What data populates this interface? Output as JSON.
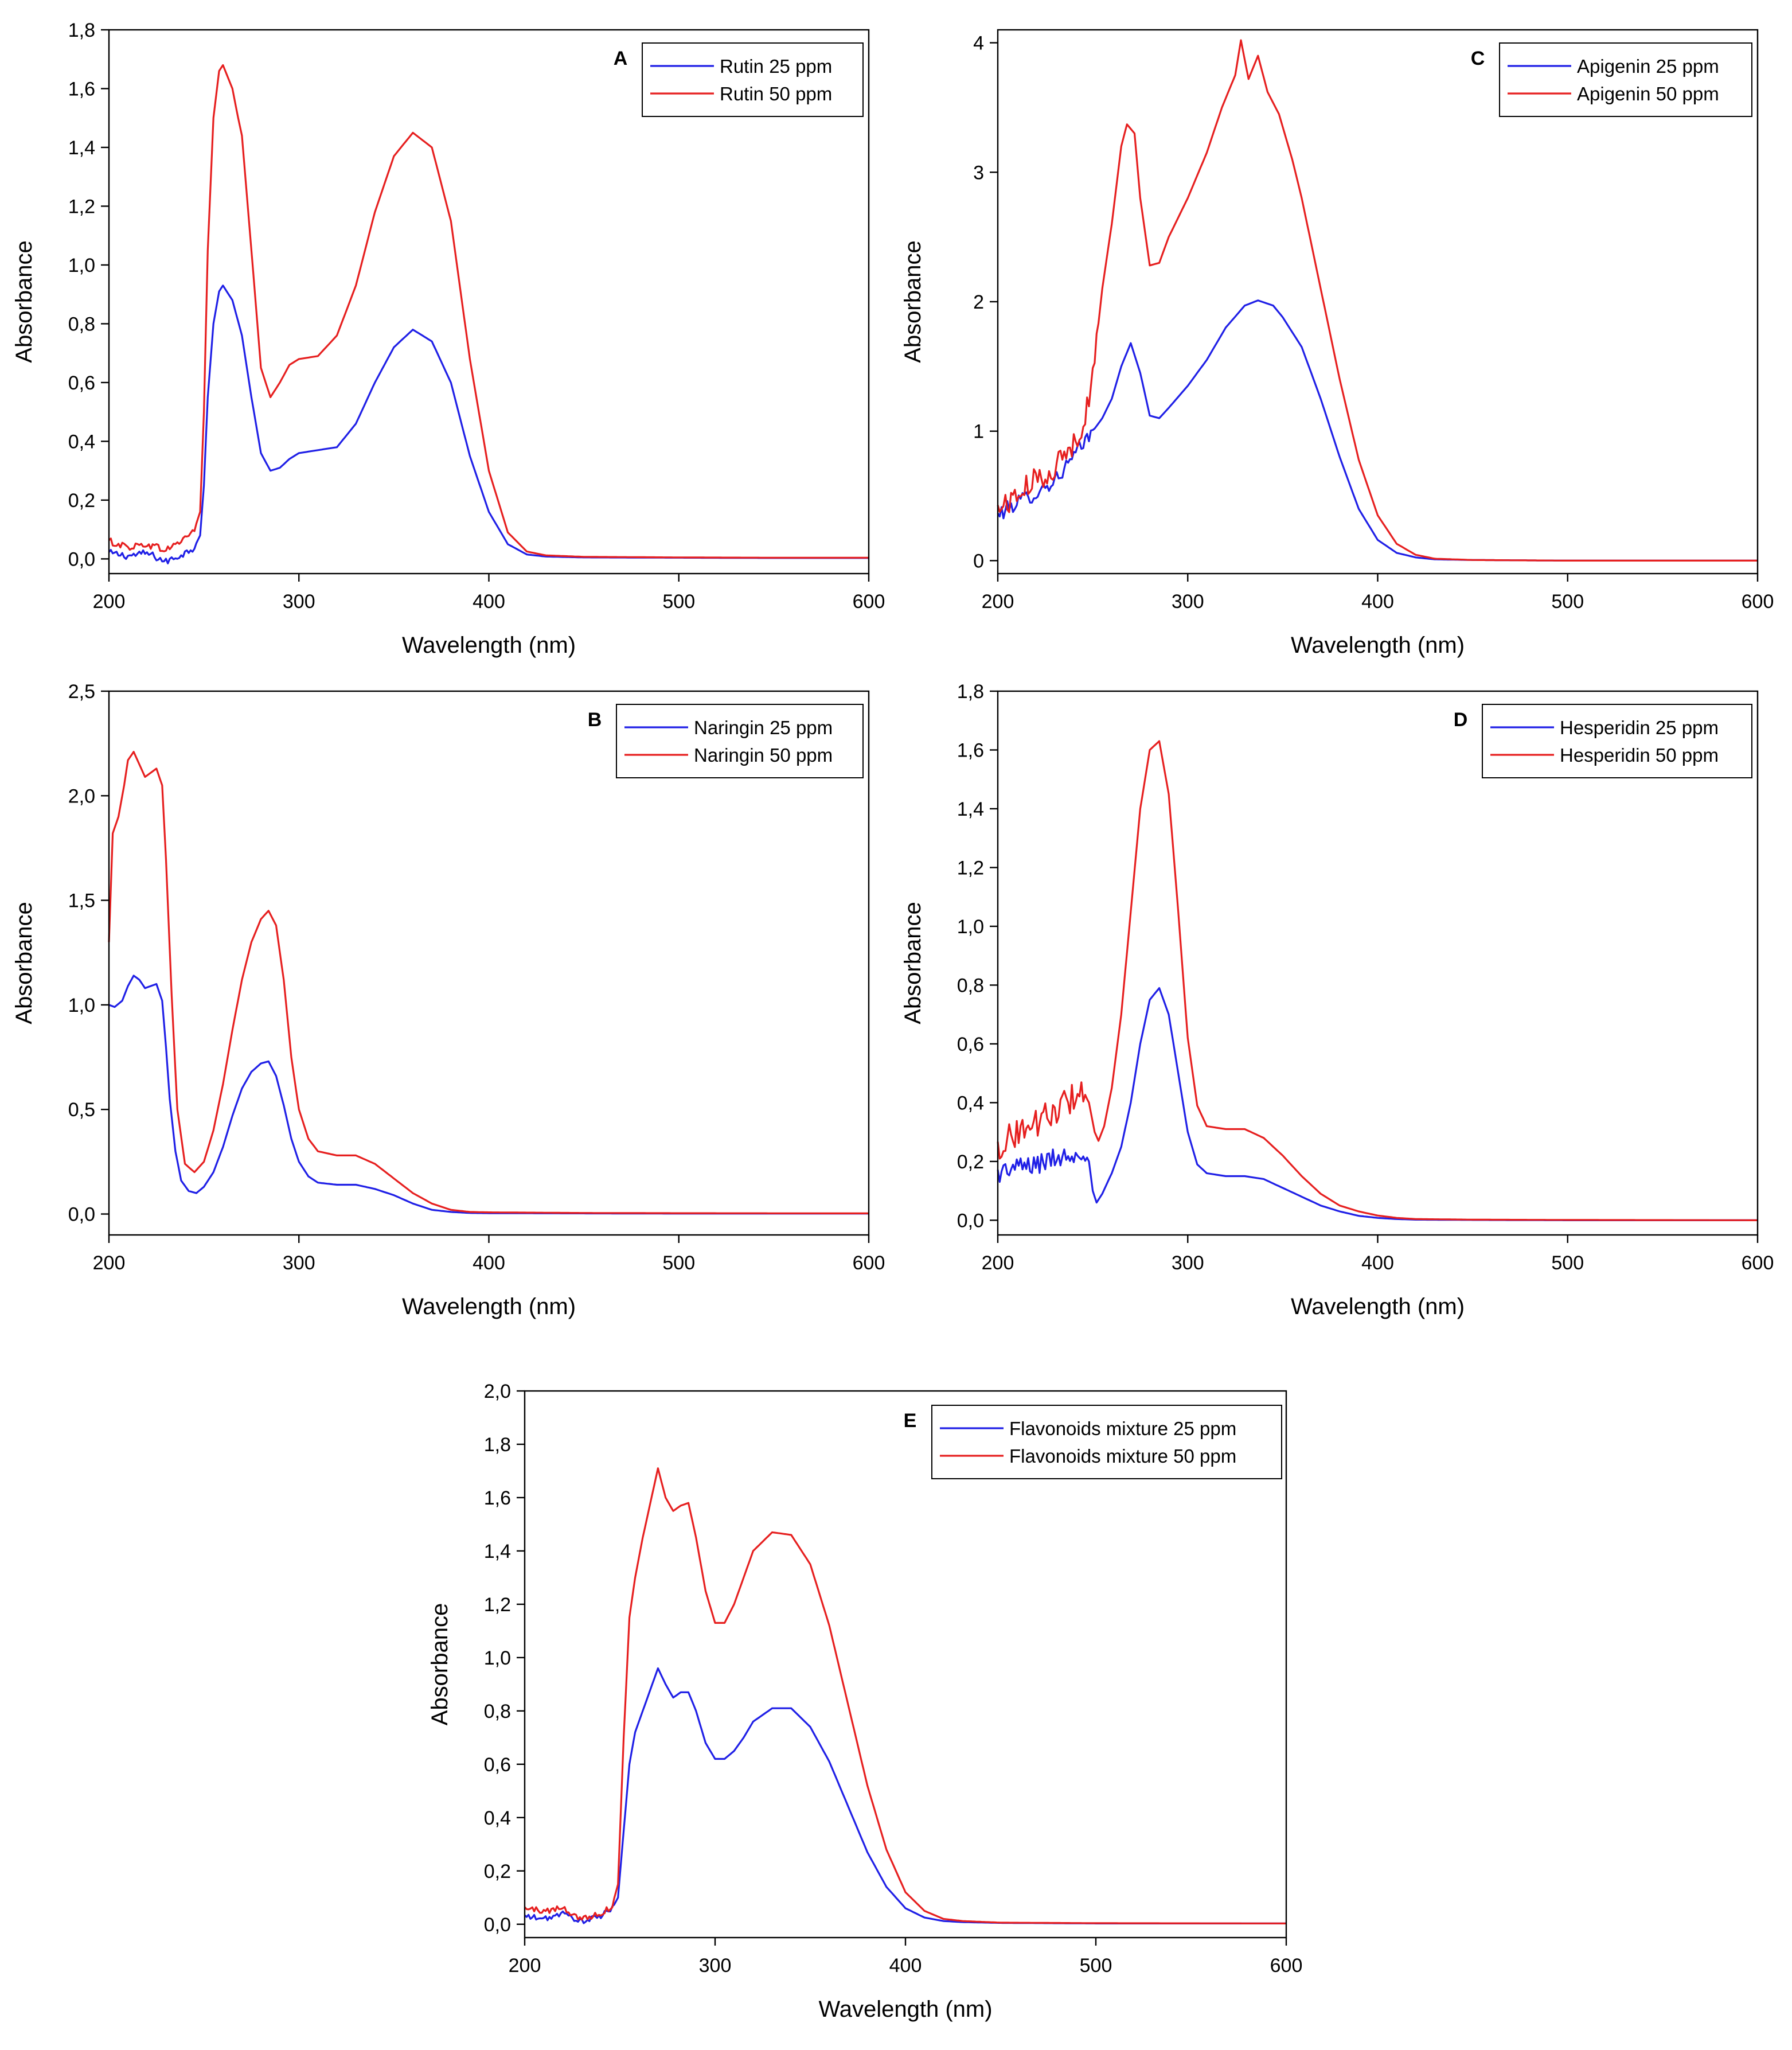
{
  "figure": {
    "background": "#ffffff"
  },
  "colors": {
    "series_25": "#1f1fe6",
    "series_50": "#e61f1f"
  },
  "chart_data": [
    {
      "panel": "A",
      "type": "line",
      "xlabel": "Wavelength (nm)",
      "ylabel": "Absorbance",
      "xlim": [
        200,
        600
      ],
      "ylim": [
        -0.05,
        1.8
      ],
      "xticks": [
        200,
        300,
        400,
        500,
        600
      ],
      "xtick_labels": [
        "200",
        "300",
        "400",
        "500",
        "600"
      ],
      "yticks": [
        0,
        0.2,
        0.4,
        0.6,
        0.8,
        1.0,
        1.2,
        1.4,
        1.6,
        1.8
      ],
      "ytick_labels": [
        "0,0",
        "0,2",
        "0,4",
        "0,6",
        "0,8",
        "1,0",
        "1,2",
        "1,4",
        "1,6",
        "1,8"
      ],
      "series": [
        {
          "name": "Rutin 25 ppm",
          "color": "#1f1fe6",
          "noise": 0.012,
          "noise_end": 245,
          "x": [
            200,
            210,
            220,
            230,
            240,
            245,
            248,
            250,
            252,
            255,
            258,
            260,
            265,
            270,
            275,
            280,
            285,
            290,
            295,
            300,
            310,
            320,
            330,
            340,
            350,
            360,
            370,
            380,
            390,
            400,
            410,
            420,
            430,
            450,
            500,
            550,
            600
          ],
          "y": [
            0.02,
            0.01,
            0.02,
            -0.01,
            0.02,
            0.04,
            0.08,
            0.25,
            0.55,
            0.8,
            0.91,
            0.93,
            0.88,
            0.76,
            0.55,
            0.36,
            0.3,
            0.31,
            0.34,
            0.36,
            0.37,
            0.38,
            0.46,
            0.6,
            0.72,
            0.78,
            0.74,
            0.6,
            0.35,
            0.16,
            0.05,
            0.015,
            0.008,
            0.005,
            0.004,
            0.003,
            0.003
          ]
        },
        {
          "name": "Rutin 50 ppm",
          "color": "#e61f1f",
          "noise": 0.012,
          "noise_end": 245,
          "x": [
            200,
            210,
            220,
            230,
            240,
            245,
            248,
            250,
            252,
            255,
            258,
            260,
            265,
            268,
            270,
            275,
            280,
            285,
            290,
            295,
            300,
            310,
            320,
            330,
            340,
            350,
            360,
            370,
            380,
            390,
            400,
            410,
            420,
            430,
            450,
            500,
            550,
            600
          ],
          "y": [
            0.06,
            0.04,
            0.05,
            0.03,
            0.07,
            0.1,
            0.16,
            0.5,
            1.05,
            1.5,
            1.66,
            1.68,
            1.6,
            1.5,
            1.44,
            1.05,
            0.65,
            0.55,
            0.6,
            0.66,
            0.68,
            0.69,
            0.76,
            0.93,
            1.18,
            1.37,
            1.45,
            1.4,
            1.15,
            0.68,
            0.3,
            0.09,
            0.025,
            0.012,
            0.007,
            0.005,
            0.004,
            0.004
          ]
        }
      ]
    },
    {
      "panel": "C",
      "type": "line",
      "xlabel": "Wavelength (nm)",
      "ylabel": "Absorbance",
      "xlim": [
        200,
        600
      ],
      "ylim": [
        -0.1,
        4.1
      ],
      "xticks": [
        200,
        300,
        400,
        500,
        600
      ],
      "xtick_labels": [
        "200",
        "300",
        "400",
        "500",
        "600"
      ],
      "yticks": [
        0,
        1,
        2,
        3,
        4
      ],
      "ytick_labels": [
        "0",
        "1",
        "2",
        "3",
        "4"
      ],
      "series": [
        {
          "name": "Apigenin 25 ppm",
          "color": "#1f1fe6",
          "noise": 0.06,
          "noise_end": 250,
          "x": [
            200,
            210,
            220,
            230,
            240,
            250,
            255,
            260,
            265,
            270,
            275,
            280,
            285,
            290,
            300,
            310,
            320,
            330,
            337,
            345,
            350,
            360,
            370,
            380,
            390,
            400,
            410,
            420,
            430,
            450,
            500,
            600
          ],
          "y": [
            0.35,
            0.45,
            0.52,
            0.62,
            0.8,
            1.0,
            1.1,
            1.25,
            1.5,
            1.68,
            1.45,
            1.12,
            1.1,
            1.18,
            1.35,
            1.55,
            1.8,
            1.97,
            2.01,
            1.97,
            1.88,
            1.65,
            1.25,
            0.8,
            0.4,
            0.16,
            0.06,
            0.025,
            0.01,
            0.005,
            0.0,
            0.0
          ]
        },
        {
          "name": "Apigenin 50 ppm",
          "color": "#e61f1f",
          "noise": 0.1,
          "noise_end": 252,
          "x": [
            200,
            210,
            220,
            230,
            240,
            248,
            252,
            255,
            260,
            265,
            268,
            272,
            275,
            280,
            285,
            290,
            300,
            310,
            318,
            325,
            328,
            332,
            337,
            342,
            348,
            355,
            360,
            370,
            380,
            390,
            400,
            410,
            420,
            430,
            450,
            500,
            600
          ],
          "y": [
            0.4,
            0.5,
            0.62,
            0.72,
            0.9,
            1.2,
            1.7,
            2.1,
            2.6,
            3.2,
            3.37,
            3.3,
            2.8,
            2.28,
            2.3,
            2.5,
            2.8,
            3.15,
            3.5,
            3.75,
            4.02,
            3.72,
            3.9,
            3.62,
            3.45,
            3.1,
            2.8,
            2.1,
            1.4,
            0.78,
            0.35,
            0.13,
            0.045,
            0.015,
            0.005,
            0.0,
            0.0
          ]
        }
      ]
    },
    {
      "panel": "B",
      "type": "line",
      "xlabel": "Wavelength (nm)",
      "ylabel": "Absorbance",
      "xlim": [
        200,
        600
      ],
      "ylim": [
        -0.1,
        2.5
      ],
      "xticks": [
        200,
        300,
        400,
        500,
        600
      ],
      "xtick_labels": [
        "200",
        "300",
        "400",
        "500",
        "600"
      ],
      "yticks": [
        0,
        0.5,
        1.0,
        1.5,
        2.0,
        2.5
      ],
      "ytick_labels": [
        "0,0",
        "0,5",
        "1,0",
        "1,5",
        "2,0",
        "2,5"
      ],
      "series": [
        {
          "name": "Naringin 25 ppm",
          "color": "#1f1fe6",
          "noise": 0,
          "noise_end": 0,
          "x": [
            200,
            203,
            207,
            210,
            213,
            216,
            219,
            222,
            225,
            228,
            230,
            232,
            235,
            238,
            242,
            246,
            250,
            255,
            260,
            265,
            270,
            275,
            280,
            284,
            288,
            292,
            296,
            300,
            305,
            310,
            320,
            330,
            340,
            350,
            360,
            370,
            380,
            390,
            400,
            450,
            500,
            600
          ],
          "y": [
            1.0,
            0.99,
            1.02,
            1.09,
            1.14,
            1.12,
            1.08,
            1.09,
            1.1,
            1.02,
            0.8,
            0.55,
            0.3,
            0.16,
            0.11,
            0.1,
            0.13,
            0.2,
            0.32,
            0.47,
            0.6,
            0.68,
            0.72,
            0.73,
            0.66,
            0.52,
            0.36,
            0.25,
            0.18,
            0.15,
            0.14,
            0.14,
            0.12,
            0.09,
            0.05,
            0.02,
            0.01,
            0.005,
            0.004,
            0.003,
            0.002,
            0.002
          ]
        },
        {
          "name": "Naringin 50 ppm",
          "color": "#e61f1f",
          "noise": 0,
          "noise_end": 0,
          "x": [
            200,
            202,
            205,
            208,
            210,
            213,
            216,
            219,
            222,
            225,
            228,
            230,
            233,
            236,
            240,
            245,
            250,
            255,
            260,
            265,
            270,
            275,
            280,
            284,
            288,
            292,
            296,
            300,
            305,
            310,
            320,
            330,
            340,
            350,
            360,
            370,
            380,
            390,
            400,
            450,
            500,
            600
          ],
          "y": [
            1.3,
            1.82,
            1.9,
            2.05,
            2.17,
            2.21,
            2.15,
            2.09,
            2.11,
            2.13,
            2.05,
            1.7,
            1.05,
            0.5,
            0.24,
            0.2,
            0.25,
            0.4,
            0.62,
            0.88,
            1.12,
            1.3,
            1.41,
            1.45,
            1.38,
            1.12,
            0.75,
            0.5,
            0.36,
            0.3,
            0.28,
            0.28,
            0.24,
            0.17,
            0.1,
            0.05,
            0.02,
            0.01,
            0.008,
            0.005,
            0.004,
            0.003
          ]
        }
      ]
    },
    {
      "panel": "D",
      "type": "line",
      "xlabel": "Wavelength (nm)",
      "ylabel": "Absorbance",
      "xlim": [
        200,
        600
      ],
      "ylim": [
        -0.05,
        1.8
      ],
      "xticks": [
        200,
        300,
        400,
        500,
        600
      ],
      "xtick_labels": [
        "200",
        "300",
        "400",
        "500",
        "600"
      ],
      "yticks": [
        0,
        0.2,
        0.4,
        0.6,
        0.8,
        1.0,
        1.2,
        1.4,
        1.6,
        1.8
      ],
      "ytick_labels": [
        "0,0",
        "0,2",
        "0,4",
        "0,6",
        "0,8",
        "1,0",
        "1,2",
        "1,4",
        "1,6",
        "1,8"
      ],
      "series": [
        {
          "name": "Hesperidin 25 ppm",
          "color": "#1f1fe6",
          "noise": 0.035,
          "noise_end": 246,
          "x": [
            200,
            210,
            220,
            230,
            240,
            245,
            248,
            250,
            252,
            255,
            260,
            265,
            270,
            275,
            280,
            285,
            290,
            295,
            300,
            305,
            310,
            320,
            330,
            340,
            350,
            360,
            370,
            380,
            390,
            400,
            410,
            420,
            450,
            500,
            600
          ],
          "y": [
            0.16,
            0.18,
            0.19,
            0.21,
            0.23,
            0.24,
            0.2,
            0.1,
            0.06,
            0.09,
            0.16,
            0.25,
            0.4,
            0.6,
            0.75,
            0.79,
            0.7,
            0.5,
            0.3,
            0.19,
            0.16,
            0.15,
            0.15,
            0.14,
            0.11,
            0.08,
            0.05,
            0.03,
            0.015,
            0.008,
            0.004,
            0.002,
            0.001,
            0.0,
            0.0
          ]
        },
        {
          "name": "Hesperidin 50 ppm",
          "color": "#e61f1f",
          "noise": 0.05,
          "noise_end": 246,
          "x": [
            200,
            210,
            220,
            230,
            240,
            244,
            248,
            251,
            253,
            256,
            260,
            265,
            270,
            275,
            280,
            285,
            290,
            295,
            300,
            305,
            310,
            320,
            330,
            340,
            350,
            360,
            370,
            380,
            390,
            400,
            410,
            420,
            450,
            500,
            600
          ],
          "y": [
            0.25,
            0.3,
            0.33,
            0.37,
            0.42,
            0.45,
            0.4,
            0.3,
            0.27,
            0.32,
            0.45,
            0.7,
            1.05,
            1.4,
            1.6,
            1.63,
            1.45,
            1.05,
            0.62,
            0.39,
            0.32,
            0.31,
            0.31,
            0.28,
            0.22,
            0.15,
            0.09,
            0.05,
            0.03,
            0.016,
            0.008,
            0.004,
            0.002,
            0.001,
            0.0
          ]
        }
      ]
    },
    {
      "panel": "E",
      "type": "line",
      "xlabel": "Wavelength (nm)",
      "ylabel": "Absorbance",
      "xlim": [
        200,
        600
      ],
      "ylim": [
        -0.05,
        2.0
      ],
      "xticks": [
        200,
        300,
        400,
        500,
        600
      ],
      "xtick_labels": [
        "200",
        "300",
        "400",
        "500",
        "600"
      ],
      "yticks": [
        0,
        0.2,
        0.4,
        0.6,
        0.8,
        1.0,
        1.2,
        1.4,
        1.6,
        1.8,
        2.0
      ],
      "ytick_labels": [
        "0,0",
        "0,2",
        "0,4",
        "0,6",
        "0,8",
        "1,0",
        "1,2",
        "1,4",
        "1,6",
        "1,8",
        "2,0"
      ],
      "series": [
        {
          "name": "Flavonoids mixture 25 ppm",
          "color": "#1f1fe6",
          "noise": 0.01,
          "noise_end": 246,
          "x": [
            200,
            210,
            220,
            230,
            240,
            246,
            249,
            252,
            255,
            258,
            262,
            266,
            270,
            274,
            278,
            282,
            286,
            290,
            295,
            300,
            305,
            310,
            315,
            320,
            330,
            340,
            350,
            360,
            370,
            380,
            390,
            400,
            410,
            420,
            430,
            450,
            500,
            600
          ],
          "y": [
            0.03,
            0.02,
            0.04,
            0.01,
            0.03,
            0.06,
            0.1,
            0.35,
            0.6,
            0.72,
            0.8,
            0.88,
            0.96,
            0.9,
            0.85,
            0.87,
            0.87,
            0.8,
            0.68,
            0.62,
            0.62,
            0.65,
            0.7,
            0.76,
            0.81,
            0.81,
            0.74,
            0.61,
            0.44,
            0.27,
            0.14,
            0.06,
            0.025,
            0.012,
            0.008,
            0.005,
            0.003,
            0.003
          ]
        },
        {
          "name": "Flavonoids mixture 50 ppm",
          "color": "#e61f1f",
          "noise": 0.012,
          "noise_end": 246,
          "x": [
            200,
            210,
            220,
            230,
            240,
            246,
            249,
            252,
            255,
            258,
            262,
            266,
            270,
            274,
            278,
            282,
            286,
            290,
            295,
            300,
            305,
            310,
            315,
            320,
            330,
            340,
            350,
            360,
            370,
            380,
            390,
            400,
            410,
            420,
            430,
            450,
            500,
            600
          ],
          "y": [
            0.06,
            0.05,
            0.06,
            0.02,
            0.04,
            0.07,
            0.15,
            0.7,
            1.15,
            1.3,
            1.45,
            1.58,
            1.71,
            1.6,
            1.55,
            1.57,
            1.58,
            1.45,
            1.25,
            1.13,
            1.13,
            1.2,
            1.3,
            1.4,
            1.47,
            1.46,
            1.35,
            1.12,
            0.82,
            0.52,
            0.28,
            0.12,
            0.05,
            0.02,
            0.012,
            0.006,
            0.004,
            0.003
          ]
        }
      ]
    }
  ]
}
